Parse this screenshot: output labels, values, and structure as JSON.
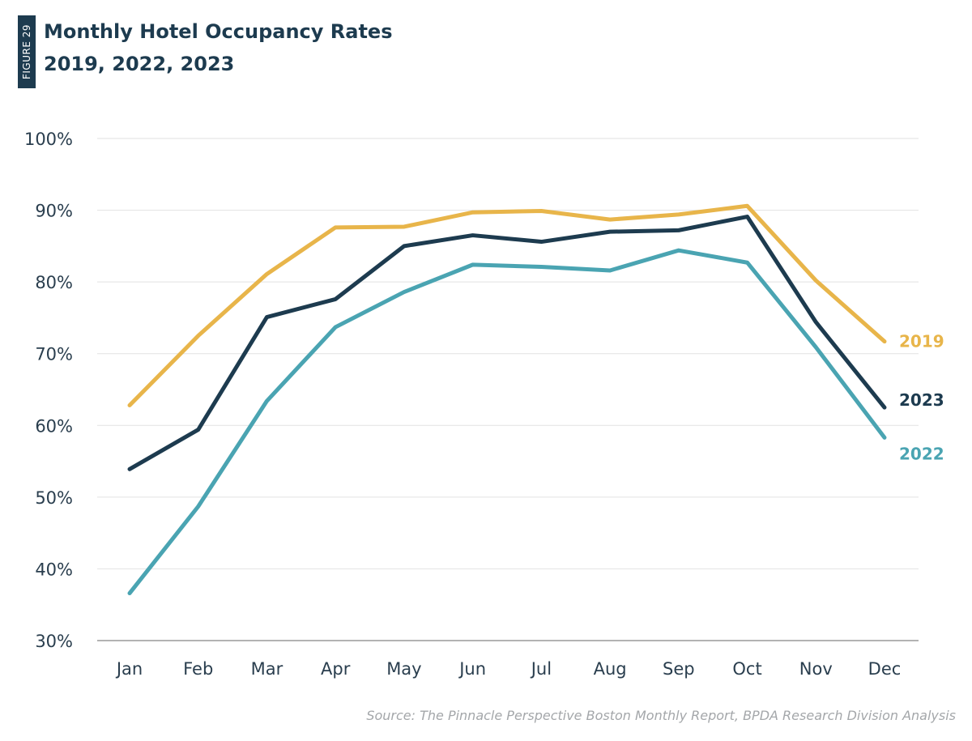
{
  "figure_tag": "FIGURE 29",
  "source": "Source: The Pinnacle Perspective Boston Monthly Report, BPDA Research Division Analysis",
  "chart_data": {
    "type": "line",
    "title": "Monthly Hotel Occupancy Rates",
    "subtitle": "2019, 2022, 2023",
    "xlabel": "",
    "ylabel": "",
    "categories": [
      "Jan",
      "Feb",
      "Mar",
      "Apr",
      "May",
      "Jun",
      "Jul",
      "Aug",
      "Sep",
      "Oct",
      "Nov",
      "Dec"
    ],
    "ylim": [
      30,
      100
    ],
    "yticks": [
      30,
      40,
      50,
      60,
      70,
      80,
      90,
      100
    ],
    "ytick_labels": [
      "30%",
      "40%",
      "50%",
      "60%",
      "70%",
      "80%",
      "90%",
      "100%"
    ],
    "grid": true,
    "legend": "inline labels at line ends (right)",
    "series": [
      {
        "name": "2019",
        "color": "#e8b54a",
        "values": [
          62.8,
          72.5,
          81.1,
          87.6,
          87.7,
          89.7,
          89.9,
          88.7,
          89.4,
          90.6,
          80.2,
          71.7
        ]
      },
      {
        "name": "2023",
        "color": "#1d3b4f",
        "values": [
          53.9,
          59.4,
          75.1,
          77.6,
          85.0,
          86.5,
          85.6,
          87.0,
          87.2,
          89.1,
          74.4,
          62.5
        ]
      },
      {
        "name": "2022",
        "color": "#4aa4b2",
        "values": [
          36.6,
          48.7,
          63.4,
          73.7,
          78.6,
          82.4,
          82.1,
          81.6,
          84.4,
          82.7,
          70.9,
          58.3
        ]
      }
    ]
  }
}
